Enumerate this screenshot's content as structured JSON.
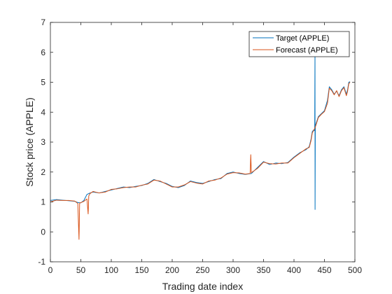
{
  "chart_data": {
    "type": "line",
    "title": "",
    "xlabel": "Trading date index",
    "ylabel": "Stock price (APPLE)",
    "xlim": [
      0,
      500
    ],
    "ylim": [
      -1,
      7
    ],
    "xticks": [
      0,
      50,
      100,
      150,
      200,
      250,
      300,
      350,
      400,
      450,
      500
    ],
    "yticks": [
      -1,
      0,
      1,
      2,
      3,
      4,
      5,
      6,
      7
    ],
    "grid": false,
    "legend_position": "top-right",
    "series": [
      {
        "name": "Target (APPLE)",
        "color": "#0072BD",
        "points": [
          [
            0,
            1.05
          ],
          [
            10,
            1.08
          ],
          [
            20,
            1.06
          ],
          [
            30,
            1.04
          ],
          [
            40,
            1.02
          ],
          [
            45,
            0.98
          ],
          [
            50,
            0.97
          ],
          [
            55,
            1.05
          ],
          [
            60,
            1.25
          ],
          [
            65,
            1.3
          ],
          [
            70,
            1.33
          ],
          [
            80,
            1.3
          ],
          [
            90,
            1.35
          ],
          [
            100,
            1.4
          ],
          [
            110,
            1.45
          ],
          [
            120,
            1.5
          ],
          [
            130,
            1.48
          ],
          [
            140,
            1.52
          ],
          [
            150,
            1.55
          ],
          [
            160,
            1.62
          ],
          [
            170,
            1.75
          ],
          [
            180,
            1.68
          ],
          [
            190,
            1.62
          ],
          [
            200,
            1.52
          ],
          [
            210,
            1.48
          ],
          [
            220,
            1.55
          ],
          [
            230,
            1.7
          ],
          [
            240,
            1.65
          ],
          [
            250,
            1.62
          ],
          [
            260,
            1.68
          ],
          [
            270,
            1.75
          ],
          [
            280,
            1.78
          ],
          [
            290,
            1.95
          ],
          [
            300,
            2.0
          ],
          [
            310,
            1.95
          ],
          [
            320,
            1.92
          ],
          [
            330,
            1.95
          ],
          [
            340,
            2.15
          ],
          [
            350,
            2.35
          ],
          [
            360,
            2.25
          ],
          [
            370,
            2.3
          ],
          [
            380,
            2.28
          ],
          [
            390,
            2.32
          ],
          [
            400,
            2.5
          ],
          [
            410,
            2.65
          ],
          [
            420,
            2.75
          ],
          [
            425,
            2.85
          ],
          [
            428,
            3.1
          ],
          [
            430,
            3.35
          ],
          [
            432,
            3.4
          ],
          [
            434,
            3.38
          ],
          [
            434.5,
            6.0
          ],
          [
            434.6,
            0.75
          ],
          [
            435,
            3.55
          ],
          [
            440,
            3.85
          ],
          [
            445,
            3.95
          ],
          [
            450,
            4.05
          ],
          [
            455,
            4.4
          ],
          [
            458,
            4.85
          ],
          [
            462,
            4.75
          ],
          [
            466,
            4.6
          ],
          [
            470,
            4.7
          ],
          [
            474,
            4.55
          ],
          [
            478,
            4.75
          ],
          [
            482,
            4.85
          ],
          [
            486,
            4.6
          ],
          [
            488,
            4.75
          ],
          [
            490,
            5.0
          ],
          [
            492,
            5.02
          ]
        ]
      },
      {
        "name": "Forecast (APPLE)",
        "color": "#D95319",
        "points": [
          [
            0,
            1.0
          ],
          [
            10,
            1.06
          ],
          [
            20,
            1.05
          ],
          [
            30,
            1.05
          ],
          [
            40,
            1.03
          ],
          [
            45,
            0.95
          ],
          [
            47,
            -0.25
          ],
          [
            48,
            0.96
          ],
          [
            55,
            1.02
          ],
          [
            60,
            1.1
          ],
          [
            62,
            0.6
          ],
          [
            63,
            1.2
          ],
          [
            65,
            1.28
          ],
          [
            70,
            1.35
          ],
          [
            80,
            1.3
          ],
          [
            90,
            1.33
          ],
          [
            100,
            1.42
          ],
          [
            110,
            1.44
          ],
          [
            120,
            1.48
          ],
          [
            130,
            1.5
          ],
          [
            140,
            1.5
          ],
          [
            150,
            1.56
          ],
          [
            160,
            1.6
          ],
          [
            170,
            1.73
          ],
          [
            180,
            1.7
          ],
          [
            190,
            1.6
          ],
          [
            200,
            1.5
          ],
          [
            210,
            1.5
          ],
          [
            220,
            1.57
          ],
          [
            230,
            1.68
          ],
          [
            240,
            1.63
          ],
          [
            250,
            1.6
          ],
          [
            260,
            1.7
          ],
          [
            270,
            1.73
          ],
          [
            280,
            1.8
          ],
          [
            290,
            1.93
          ],
          [
            300,
            1.98
          ],
          [
            310,
            1.97
          ],
          [
            320,
            1.93
          ],
          [
            328,
            1.95
          ],
          [
            329,
            2.58
          ],
          [
            330,
            1.98
          ],
          [
            340,
            2.12
          ],
          [
            350,
            2.33
          ],
          [
            360,
            2.28
          ],
          [
            370,
            2.27
          ],
          [
            380,
            2.3
          ],
          [
            390,
            2.3
          ],
          [
            400,
            2.48
          ],
          [
            410,
            2.63
          ],
          [
            420,
            2.78
          ],
          [
            425,
            2.82
          ],
          [
            428,
            3.05
          ],
          [
            430,
            3.3
          ],
          [
            435,
            3.5
          ],
          [
            440,
            3.82
          ],
          [
            445,
            3.93
          ],
          [
            450,
            4.02
          ],
          [
            455,
            4.3
          ],
          [
            458,
            4.8
          ],
          [
            462,
            4.72
          ],
          [
            466,
            4.58
          ],
          [
            470,
            4.72
          ],
          [
            474,
            4.52
          ],
          [
            478,
            4.72
          ],
          [
            482,
            4.82
          ],
          [
            486,
            4.55
          ],
          [
            488,
            4.7
          ],
          [
            490,
            4.95
          ],
          [
            492,
            5.0
          ]
        ]
      }
    ]
  }
}
